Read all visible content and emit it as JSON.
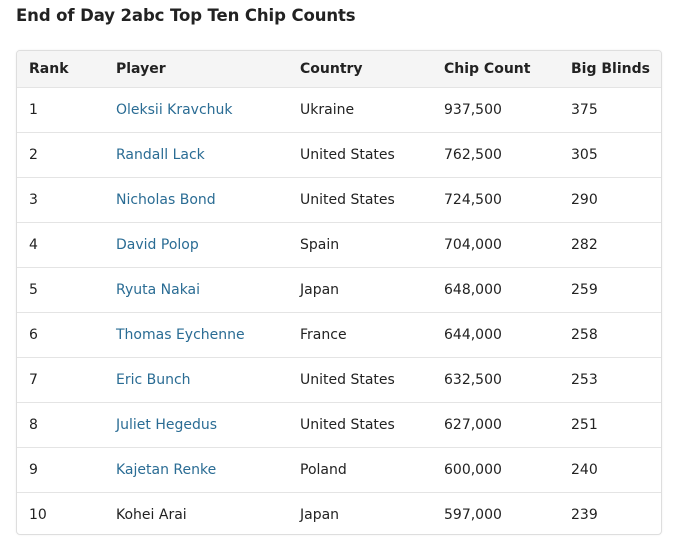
{
  "title": "End of Day 2abc Top Ten Chip Counts",
  "columns": {
    "rank": "Rank",
    "player": "Player",
    "country": "Country",
    "chips": "Chip Count",
    "bb": "Big Blinds"
  },
  "rows": [
    {
      "rank": "1",
      "player": "Oleksii Kravchuk",
      "linked": true,
      "country": "Ukraine",
      "chips": "937,500",
      "bb": "375"
    },
    {
      "rank": "2",
      "player": "Randall Lack",
      "linked": true,
      "country": "United States",
      "chips": "762,500",
      "bb": "305"
    },
    {
      "rank": "3",
      "player": "Nicholas Bond",
      "linked": true,
      "country": "United States",
      "chips": "724,500",
      "bb": "290"
    },
    {
      "rank": "4",
      "player": "David Polop",
      "linked": true,
      "country": "Spain",
      "chips": "704,000",
      "bb": "282"
    },
    {
      "rank": "5",
      "player": "Ryuta Nakai",
      "linked": true,
      "country": "Japan",
      "chips": "648,000",
      "bb": "259"
    },
    {
      "rank": "6",
      "player": "Thomas Eychenne",
      "linked": true,
      "country": "France",
      "chips": "644,000",
      "bb": "258"
    },
    {
      "rank": "7",
      "player": "Eric Bunch",
      "linked": true,
      "country": "United States",
      "chips": "632,500",
      "bb": "253"
    },
    {
      "rank": "8",
      "player": "Juliet Hegedus",
      "linked": true,
      "country": "United States",
      "chips": "627,000",
      "bb": "251"
    },
    {
      "rank": "9",
      "player": "Kajetan Renke",
      "linked": true,
      "country": "Poland",
      "chips": "600,000",
      "bb": "240"
    },
    {
      "rank": "10",
      "player": "Kohei Arai",
      "linked": false,
      "country": "Japan",
      "chips": "597,000",
      "bb": "239"
    }
  ],
  "colors": {
    "link": "#2a6c94",
    "text": "#222222",
    "header_bg": "#f5f5f5",
    "border": "#dedede"
  }
}
